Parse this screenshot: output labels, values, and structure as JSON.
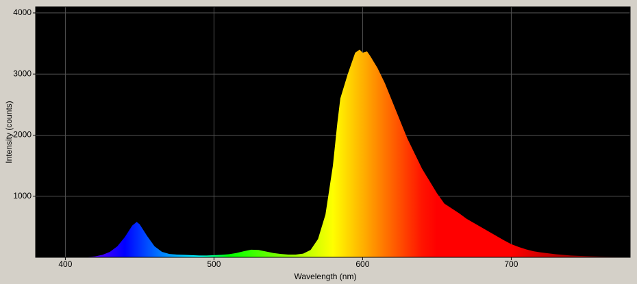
{
  "chart_data": {
    "type": "area",
    "x_label": "Wavelength (nm)",
    "y_label": "Intensity (counts)",
    "x": [
      380,
      385,
      390,
      395,
      400,
      405,
      410,
      415,
      420,
      425,
      430,
      435,
      440,
      445,
      448,
      450,
      455,
      460,
      465,
      470,
      475,
      480,
      485,
      490,
      495,
      500,
      505,
      510,
      515,
      520,
      525,
      530,
      535,
      540,
      545,
      550,
      555,
      560,
      565,
      570,
      575,
      580,
      583,
      585,
      590,
      595,
      598,
      600,
      603,
      605,
      610,
      615,
      620,
      625,
      630,
      635,
      640,
      645,
      650,
      655,
      660,
      665,
      670,
      675,
      680,
      685,
      690,
      695,
      700,
      705,
      710,
      715,
      720,
      730,
      740,
      750,
      760,
      770,
      780
    ],
    "values": [
      0,
      0,
      0,
      0,
      0,
      0,
      0,
      5,
      15,
      40,
      90,
      180,
      330,
      520,
      580,
      540,
      350,
      180,
      90,
      55,
      45,
      40,
      35,
      30,
      30,
      35,
      40,
      50,
      70,
      100,
      125,
      120,
      95,
      70,
      55,
      45,
      45,
      60,
      120,
      300,
      700,
      1500,
      2200,
      2600,
      3000,
      3350,
      3400,
      3350,
      3370,
      3300,
      3100,
      2850,
      2550,
      2250,
      1950,
      1700,
      1450,
      1250,
      1050,
      880,
      800,
      720,
      630,
      560,
      490,
      420,
      350,
      280,
      215,
      170,
      130,
      100,
      80,
      50,
      30,
      20,
      12,
      8,
      5
    ],
    "xlim": [
      380,
      780
    ],
    "ylim": [
      0,
      4100
    ],
    "xticks": [
      400,
      500,
      600,
      700
    ],
    "yticks": [
      1000,
      2000,
      3000,
      4000
    ],
    "grid": true
  }
}
